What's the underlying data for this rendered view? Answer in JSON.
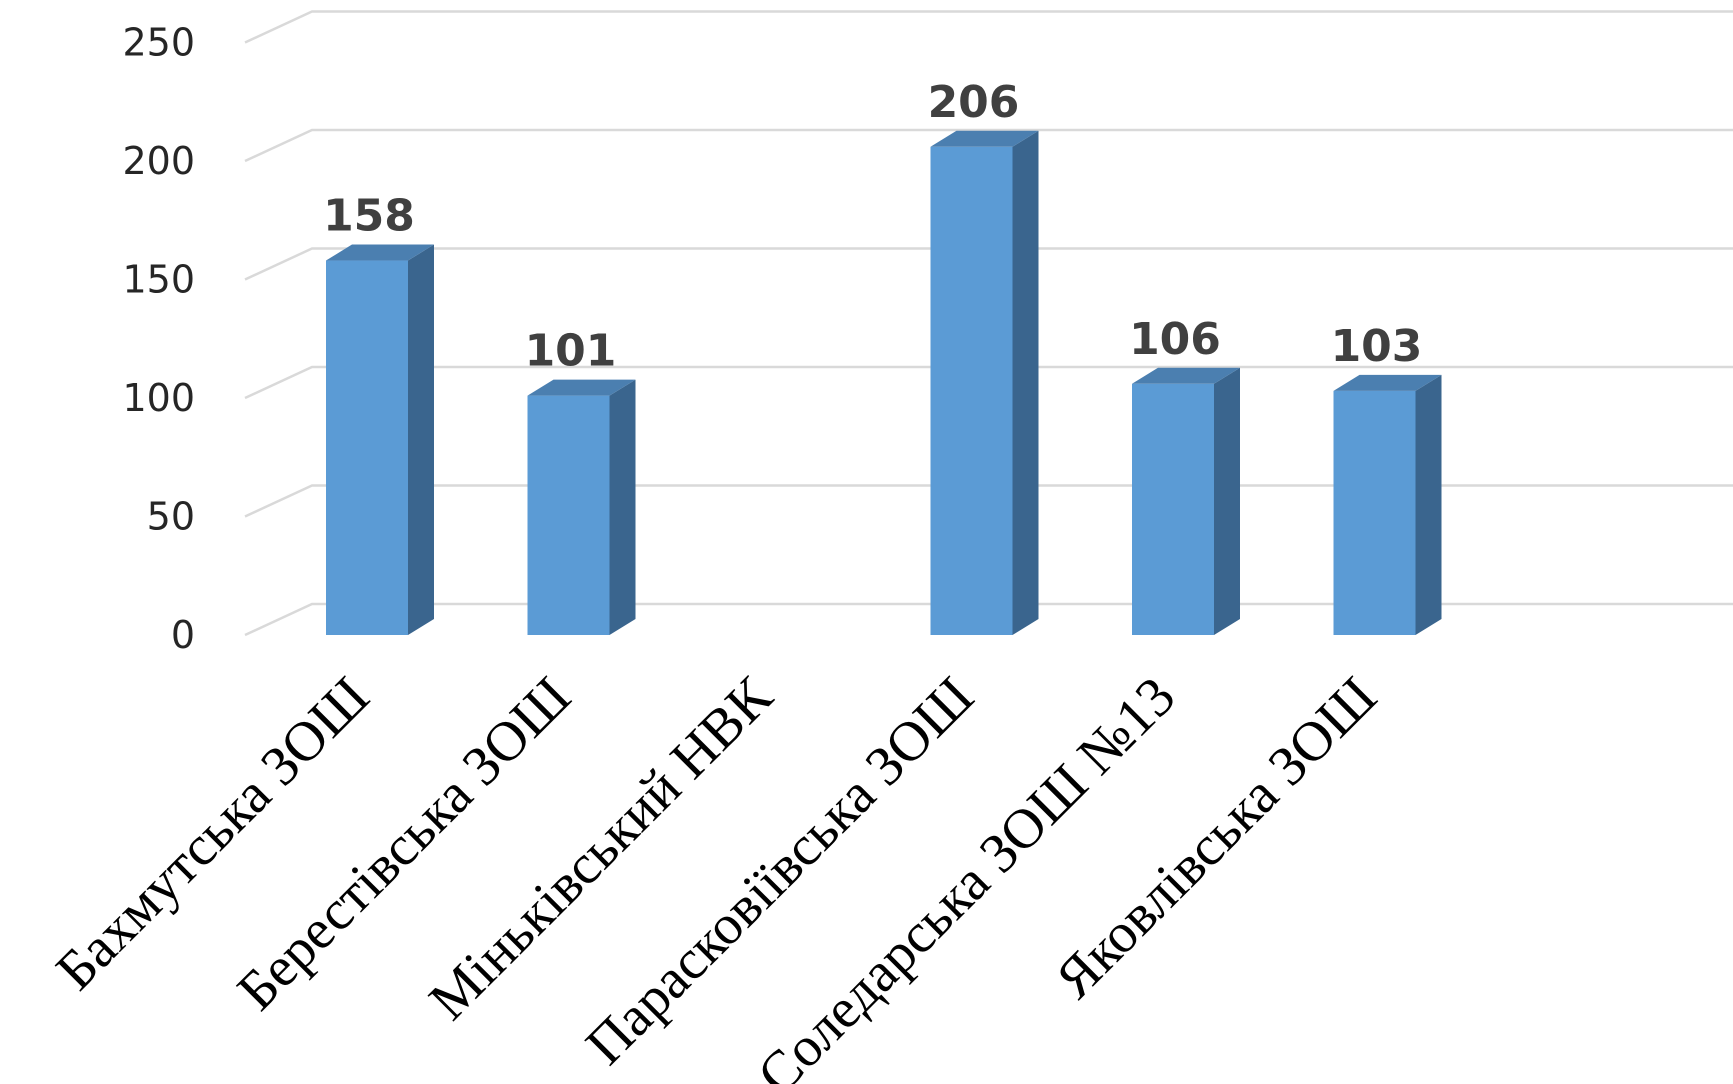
{
  "chart_data": {
    "type": "bar",
    "style": "3d-column",
    "categories": [
      "Бахмутська ЗОШ",
      "Берестівська ЗОШ",
      "Міньківський НВК",
      "Парасковіївська ЗОШ",
      "Соледарська ЗОШ №13",
      "Яковлівська ЗОШ"
    ],
    "values": [
      158,
      101,
      null,
      206,
      106,
      103
    ],
    "data_labels": [
      "158",
      "101",
      "",
      "206",
      "106",
      "103"
    ],
    "yticks": [
      "0",
      "50",
      "100",
      "150",
      "200",
      "250"
    ],
    "ylim": [
      0,
      250
    ],
    "grid": true,
    "legend": "none",
    "colors": {
      "bar_front": "#5b9bd5",
      "bar_side": "#3a658e",
      "bar_top": "#4b7fb0",
      "grid": "#d9d9d9"
    }
  }
}
